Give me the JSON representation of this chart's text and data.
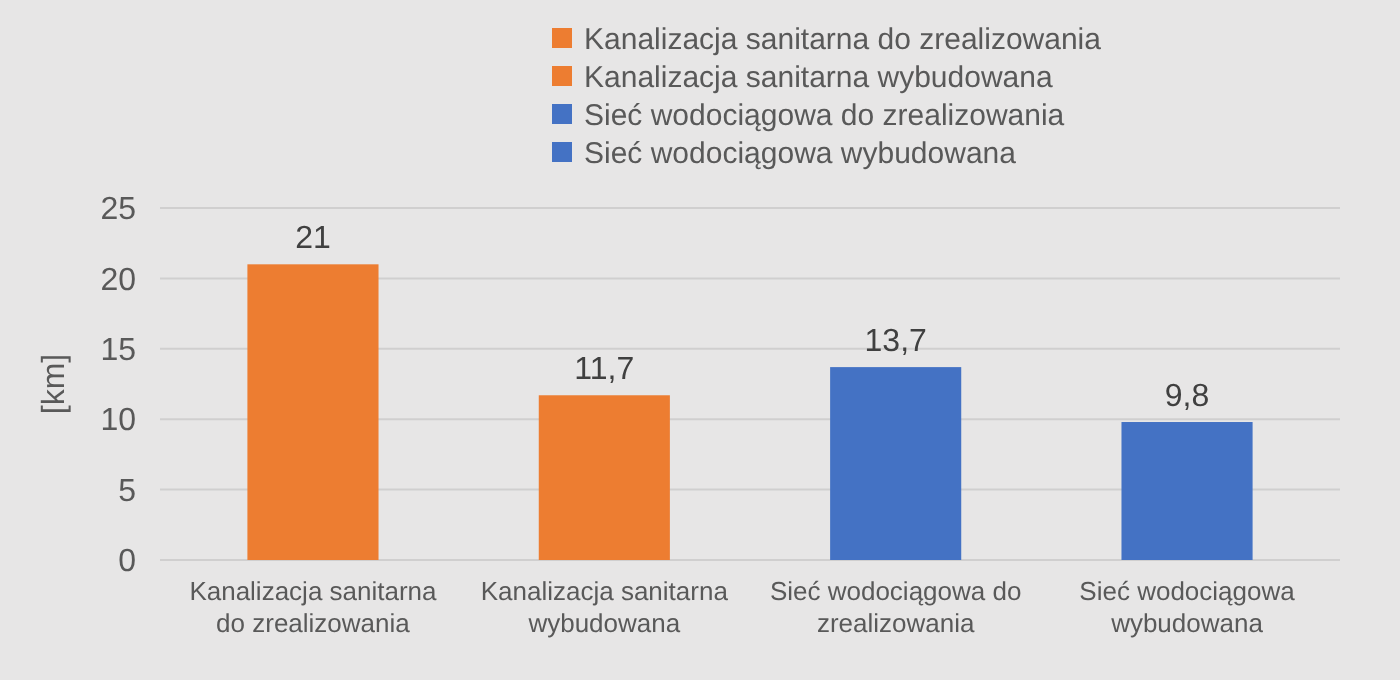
{
  "chart_data": {
    "type": "bar",
    "ylabel": "[km]",
    "categories": [
      "Kanalizacja sanitarna do zrealizowania",
      "Kanalizacja sanitarna wybudowana",
      "Sieć wodociągowa do zrealizowania",
      "Sieć wodociągowa wybudowana"
    ],
    "series": [
      {
        "name": "Kanalizacja sanitarna do zrealizowania",
        "color": "#ed7d31",
        "values": [
          21,
          null,
          null,
          null
        ],
        "value_labels": [
          "21",
          null,
          null,
          null
        ]
      },
      {
        "name": "Kanalizacja sanitarna wybudowana",
        "color": "#ed7d31",
        "values": [
          null,
          11.7,
          null,
          null
        ],
        "value_labels": [
          null,
          "11,7",
          null,
          null
        ]
      },
      {
        "name": "Sieć wodociągowa do zrealizowania",
        "color": "#4472c4",
        "values": [
          null,
          null,
          13.7,
          null
        ],
        "value_labels": [
          null,
          null,
          "13,7",
          null
        ]
      },
      {
        "name": "Sieć wodociągowa wybudowana",
        "color": "#4472c4",
        "values": [
          null,
          null,
          null,
          9.8
        ],
        "value_labels": [
          null,
          null,
          null,
          "9,8"
        ]
      }
    ],
    "ylim": [
      0,
      25
    ],
    "yticks": [
      0,
      5,
      10,
      15,
      20,
      25
    ],
    "grid": "y",
    "legend": "top"
  }
}
